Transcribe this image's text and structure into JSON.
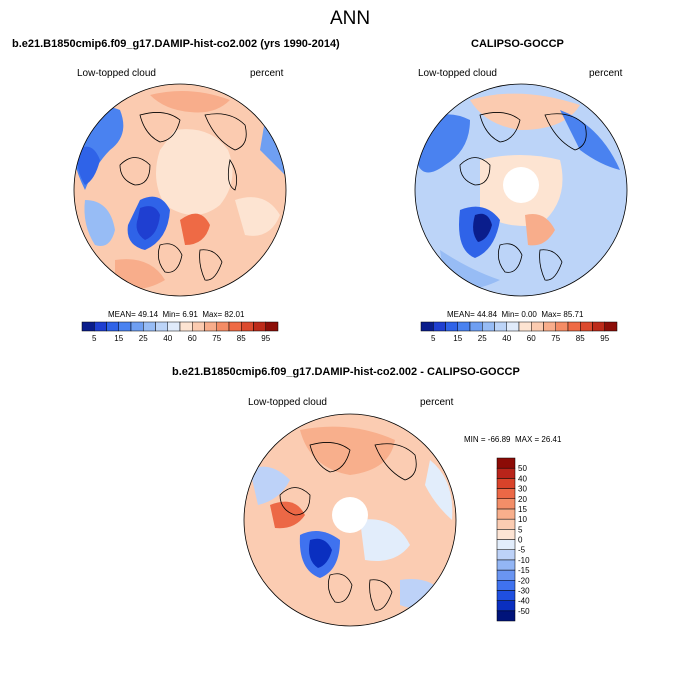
{
  "chart_data": [
    {
      "type": "heatmap",
      "projection": "north-polar-stereographic",
      "title": "b.e21.B1850cmip6.f09_g17.DAMIP-hist-co2.002 (yrs 1990-2014)",
      "variable": "Low-topped cloud",
      "units": "percent",
      "stats": {
        "mean_label": "MEAN=",
        "mean": "49.14",
        "min_label": "Min=",
        "min": "6.91",
        "max_label": "Max=",
        "max": "82.01"
      },
      "colorbar": {
        "orientation": "horizontal",
        "levels": [
          5,
          10,
          15,
          20,
          25,
          30,
          40,
          50,
          60,
          65,
          70,
          75,
          80,
          85,
          90,
          95
        ],
        "tick_labels": [
          "5",
          "15",
          "25",
          "40",
          "60",
          "75",
          "85",
          "95"
        ],
        "colors": [
          "#0a1d8c",
          "#1f3fd1",
          "#2f63e8",
          "#4a82f0",
          "#6f9ff2",
          "#97bcf5",
          "#bcd4f8",
          "#e0ebfb",
          "#fde4d2",
          "#fbcbb0",
          "#f8ad8b",
          "#f48c65",
          "#ee6a45",
          "#dc4a2e",
          "#bd2b1a",
          "#8c0e08"
        ]
      }
    },
    {
      "type": "heatmap",
      "projection": "north-polar-stereographic",
      "title": "CALIPSO-GOCCP",
      "variable": "Low-topped cloud",
      "units": "percent",
      "stats": {
        "mean_label": "MEAN=",
        "mean": "44.84",
        "min_label": "Min=",
        "min": "0.00",
        "max_label": "Max=",
        "max": "85.71"
      },
      "colorbar": {
        "orientation": "horizontal",
        "levels": [
          5,
          10,
          15,
          20,
          25,
          30,
          40,
          50,
          60,
          65,
          70,
          75,
          80,
          85,
          90,
          95
        ],
        "tick_labels": [
          "5",
          "15",
          "25",
          "40",
          "60",
          "75",
          "85",
          "95"
        ],
        "colors": [
          "#0a1d8c",
          "#1f3fd1",
          "#2f63e8",
          "#4a82f0",
          "#6f9ff2",
          "#97bcf5",
          "#bcd4f8",
          "#e0ebfb",
          "#fde4d2",
          "#fbcbb0",
          "#f8ad8b",
          "#f48c65",
          "#ee6a45",
          "#dc4a2e",
          "#bd2b1a",
          "#8c0e08"
        ]
      }
    },
    {
      "type": "heatmap",
      "projection": "north-polar-stereographic",
      "title": "b.e21.B1850cmip6.f09_g17.DAMIP-hist-co2.002 - CALIPSO-GOCCP",
      "variable": "Low-topped cloud",
      "units": "percent",
      "stats": {
        "min_label": "MIN =",
        "min": "-66.89",
        "max_label": "MAX =",
        "max": "26.41"
      },
      "colorbar": {
        "orientation": "vertical",
        "levels": [
          -50,
          -40,
          -30,
          -20,
          -15,
          -10,
          -5,
          0,
          5,
          10,
          15,
          20,
          30,
          40,
          50
        ],
        "tick_labels": [
          "-50",
          "-40",
          "-30",
          "-20",
          "-15",
          "-10",
          "-5",
          "0",
          "5",
          "10",
          "15",
          "20",
          "30",
          "40",
          "50"
        ],
        "colors": [
          "#00137a",
          "#0a2fc0",
          "#1f4fe0",
          "#3f72ef",
          "#6a95f2",
          "#93b6f5",
          "#bdd2f8",
          "#e2edfb",
          "#fde4d4",
          "#fbccb2",
          "#f8af8c",
          "#f38e68",
          "#ec6846",
          "#d9432a",
          "#b8241a",
          "#8c0b06"
        ]
      }
    }
  ],
  "figure_title": "ANN"
}
